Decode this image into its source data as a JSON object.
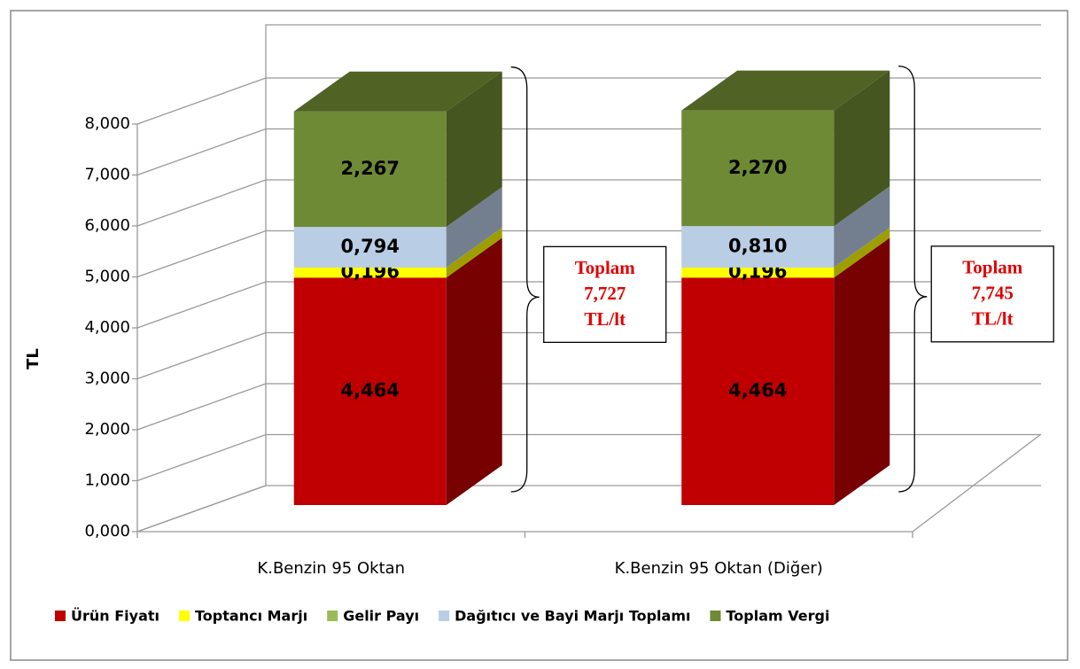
{
  "chart_data": {
    "type": "bar3d_stacked",
    "categories": [
      "K.Benzin 95 Oktan",
      "K.Benzin 95 Oktan (Diğer)"
    ],
    "series": [
      {
        "name": "Ürün Fiyatı",
        "color": "#c00000",
        "values": [
          4.464,
          4.464
        ],
        "value_labels": [
          "4,464",
          "4,464"
        ]
      },
      {
        "name": "Toptancı Marjı",
        "color": "#ffff00",
        "values": [
          0.196,
          0.196
        ],
        "value_labels": [
          "0,196",
          "0,196"
        ]
      },
      {
        "name": "Gelir Payı",
        "color": "#9bbb59",
        "values": [
          0.006,
          0.005
        ]
      },
      {
        "name": "Dağıtıcı ve Bayi Marjı Toplamı",
        "color": "#b9cde5",
        "values": [
          0.794,
          0.81
        ],
        "value_labels": [
          "0,794",
          "0,810"
        ]
      },
      {
        "name": "Toplam Vergi",
        "color": "#6f8a34",
        "values": [
          2.267,
          2.27
        ],
        "value_labels": [
          "2,267",
          "2,270"
        ]
      }
    ],
    "ylabel": "TL",
    "ylim": [
      0,
      8
    ],
    "yticks": [
      {
        "value": 0,
        "label": "0,000"
      },
      {
        "value": 1,
        "label": "1,000"
      },
      {
        "value": 2,
        "label": "2,000"
      },
      {
        "value": 3,
        "label": "3,000"
      },
      {
        "value": 4,
        "label": "4,000"
      },
      {
        "value": 5,
        "label": "5,000"
      },
      {
        "value": 6,
        "label": "6,000"
      },
      {
        "value": 7,
        "label": "7,000"
      },
      {
        "value": 8,
        "label": "8,000"
      }
    ],
    "grid": true,
    "legend": "bottom",
    "annotations": [
      [
        "Toplam",
        "7,727",
        "TL/lt"
      ],
      [
        "Toplam",
        "7,745",
        "TL/lt"
      ]
    ]
  }
}
